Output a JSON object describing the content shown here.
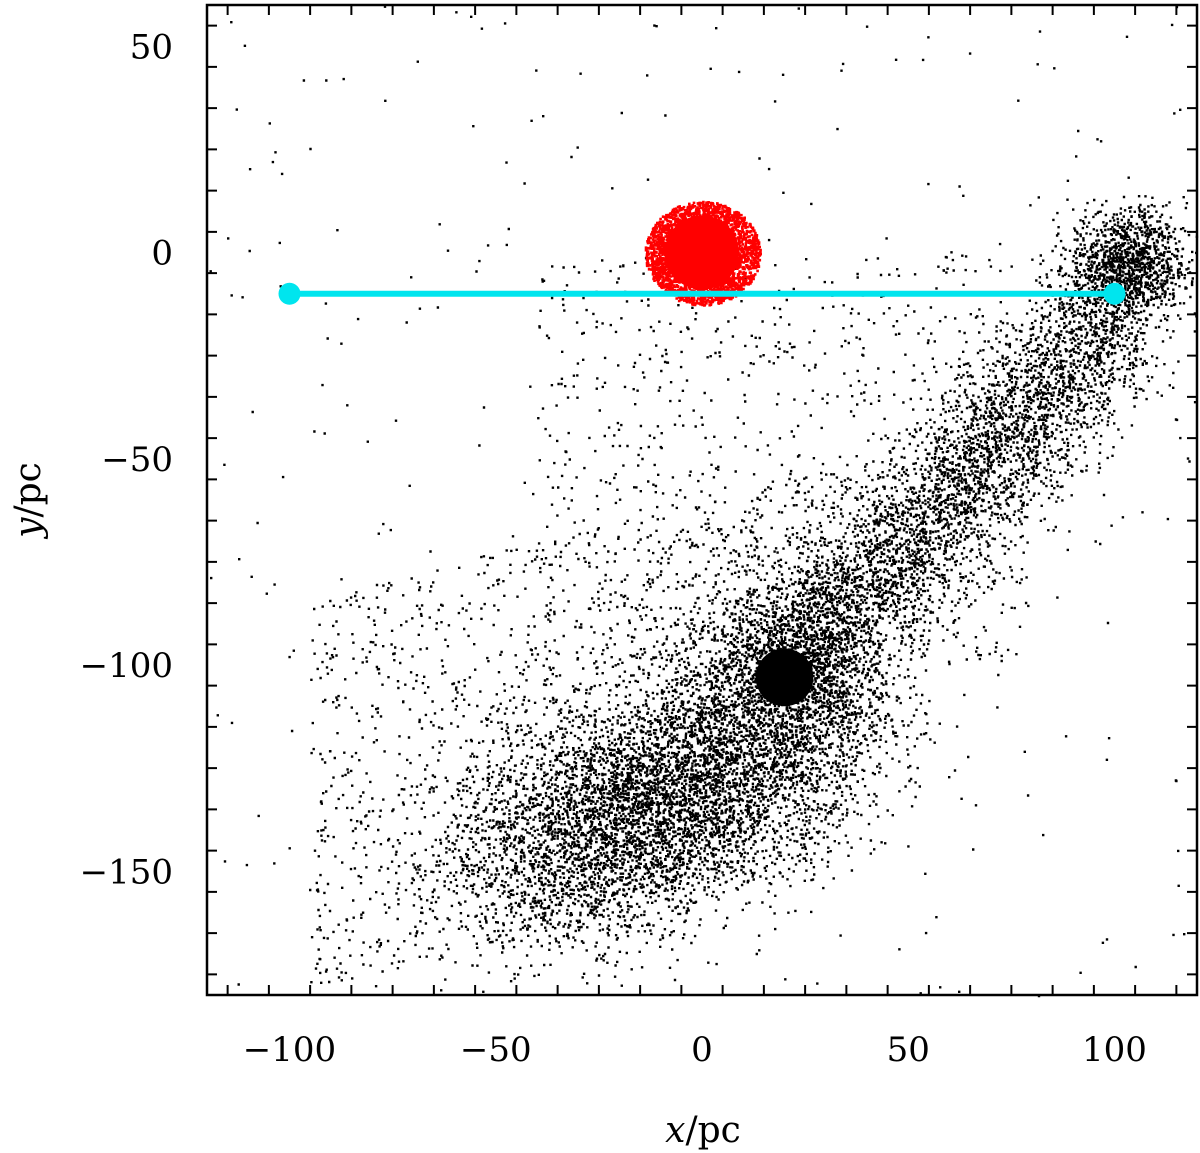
{
  "chart_data": {
    "type": "scatter",
    "title": "",
    "xlabel": {
      "var": "x",
      "unit": "/pc"
    },
    "ylabel": {
      "var": "y",
      "unit": "/pc"
    },
    "xlim": [
      -120,
      120
    ],
    "ylim": [
      -180,
      60
    ],
    "x_ticks": [
      -100,
      -50,
      0,
      50,
      100
    ],
    "y_ticks": [
      50,
      0,
      -50,
      -100,
      -150
    ],
    "x_tick_labels": [
      "−100",
      "−50",
      "0",
      "50",
      "100"
    ],
    "y_tick_labels": [
      "50",
      "0",
      "−50",
      "−100",
      "−150"
    ],
    "grid": false,
    "legend": "none",
    "colors": {
      "stars": "#000000",
      "progenitor": "#ff0000",
      "line": "#00e5ee"
    },
    "series": [
      {
        "kind": "progenitor-cluster",
        "color": "#ff0000",
        "center": [
          0,
          0
        ],
        "radius": 14,
        "approx_count": 3000
      },
      {
        "kind": "dense-core",
        "color": "#000000",
        "center": [
          20,
          -103
        ],
        "radius": 7
      },
      {
        "kind": "tidal-stream",
        "color": "#000000",
        "components": [
          {
            "region": "lower-left fan",
            "center": [
              -15,
              -135
            ],
            "extent_x": [
              -110,
              40
            ],
            "extent_y": [
              -178,
              -80
            ]
          },
          {
            "region": "stream to upper-right",
            "from": [
              20,
              -103
            ],
            "to": [
              100,
              -15
            ]
          },
          {
            "region": "upper-right clump",
            "center": [
              103,
              -3
            ],
            "extent_x": [
              85,
              120
            ],
            "extent_y": [
              -22,
              14
            ]
          },
          {
            "region": "sparse halo",
            "extent_x": [
              -120,
              120
            ],
            "extent_y": [
              -180,
              60
            ]
          }
        ]
      }
    ],
    "line_segment": {
      "color": "#00e5ee",
      "x": [
        -100,
        100
      ],
      "y": [
        -10,
        -10
      ]
    }
  }
}
